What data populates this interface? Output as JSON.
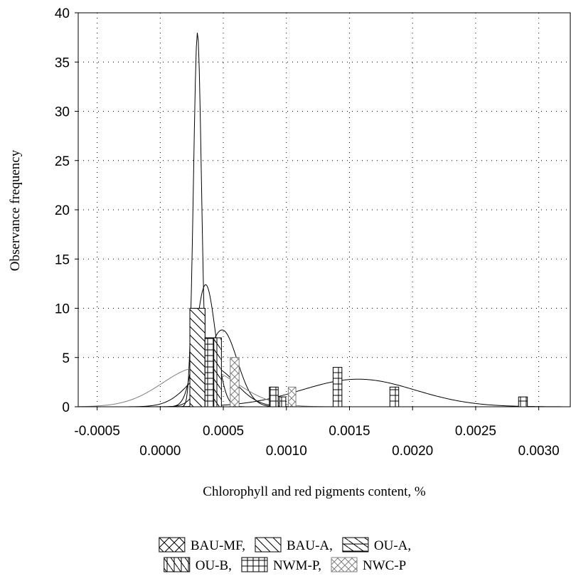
{
  "chart_data": {
    "type": "bar",
    "title": "",
    "xlabel": "Chlorophyll and red pigments content, %",
    "ylabel": "Observance frequency",
    "xlim": [
      -0.00065,
      0.00325
    ],
    "ylim": [
      0,
      40
    ],
    "grid": true,
    "legend_position": "bottom",
    "x_ticks_upper": [
      {
        "value": -0.0005,
        "label": "-0.0005"
      },
      {
        "value": 0.0005,
        "label": "0.0005"
      },
      {
        "value": 0.0015,
        "label": "0.0015"
      },
      {
        "value": 0.0025,
        "label": "0.0025"
      }
    ],
    "x_ticks_lower": [
      {
        "value": 0.0,
        "label": "0.0000"
      },
      {
        "value": 0.001,
        "label": "0.0010"
      },
      {
        "value": 0.002,
        "label": "0.0020"
      },
      {
        "value": 0.003,
        "label": "0.0030"
      }
    ],
    "y_ticks": [
      {
        "value": 0,
        "label": "0"
      },
      {
        "value": 5,
        "label": "5"
      },
      {
        "value": 10,
        "label": "10"
      },
      {
        "value": 15,
        "label": "15"
      },
      {
        "value": 20,
        "label": "20"
      },
      {
        "value": 25,
        "label": "25"
      },
      {
        "value": 30,
        "label": "30"
      },
      {
        "value": 35,
        "label": "35"
      },
      {
        "value": 40,
        "label": "40"
      }
    ],
    "series": [
      {
        "name": "BAU-MF",
        "pattern": "cross-diagonal",
        "color": "#000000",
        "bars": [
          {
            "x0": 0.000235,
            "x1": 0.000355,
            "value": 10
          }
        ],
        "curve": {
          "mean": 0.000295,
          "sd": 3.15e-05,
          "peak": 38
        }
      },
      {
        "name": "BAU-A",
        "pattern": "back-diagonal",
        "color": "#000000",
        "bars": [
          {
            "x0": 0.000235,
            "x1": 0.000355,
            "value": 10
          }
        ],
        "curve": {
          "mean": 0.00036,
          "sd": 7.72e-05,
          "peak": 12.4
        }
      },
      {
        "name": "OU-A",
        "pattern": "diagonal-horizontal",
        "color": "#000000",
        "bars": [
          {
            "x0": 0.000355,
            "x1": 0.000425,
            "value": 7
          }
        ],
        "curve": {
          "mean": 0.00049,
          "sd": 0.00012,
          "peak": 7.8
        }
      },
      {
        "name": "OU-B",
        "pattern": "vertical-diagonal",
        "color": "#000000",
        "bars": [
          {
            "x0": 0.000425,
            "x1": 0.000485,
            "value": 7
          }
        ],
        "curve": {
          "mean": 0.000415,
          "sd": 0.00018,
          "peak": 4
        }
      },
      {
        "name": "NWM-P",
        "pattern": "grid",
        "color": "#000000",
        "bars": [
          {
            "x0": 0.000355,
            "x1": 0.00042,
            "value": 7
          },
          {
            "x0": 0.000865,
            "x1": 0.000935,
            "value": 2
          },
          {
            "x0": 0.000945,
            "x1": 0.000995,
            "value": 1
          },
          {
            "x0": 0.00137,
            "x1": 0.00144,
            "value": 4
          },
          {
            "x0": 0.00182,
            "x1": 0.00189,
            "value": 2
          },
          {
            "x0": 0.00284,
            "x1": 0.00291,
            "value": 1
          }
        ],
        "curve": {
          "mean": 0.00157,
          "sd": 0.00045,
          "peak": 2.8
        }
      },
      {
        "name": "NWC-P",
        "pattern": "gray-crosshatch",
        "color": "#7f7f7f",
        "bars": [
          {
            "x0": 0.000555,
            "x1": 0.000625,
            "value": 5
          },
          {
            "x0": 0.001015,
            "x1": 0.001075,
            "value": 2
          }
        ],
        "curve": {
          "mean": 0.00031,
          "sd": 0.00029,
          "peak": 4
        }
      }
    ]
  },
  "legend": {
    "row1": [
      {
        "label": "BAU-MF,",
        "pattern": "cross-diagonal"
      },
      {
        "label": "BAU-A,",
        "pattern": "back-diagonal"
      },
      {
        "label": "OU-A,",
        "pattern": "diagonal-horizontal"
      }
    ],
    "row2": [
      {
        "label": "OU-B,",
        "pattern": "vertical-diagonal"
      },
      {
        "label": "NWM-P,",
        "pattern": "grid"
      },
      {
        "label": "NWC-P",
        "pattern": "gray-crosshatch"
      }
    ]
  }
}
